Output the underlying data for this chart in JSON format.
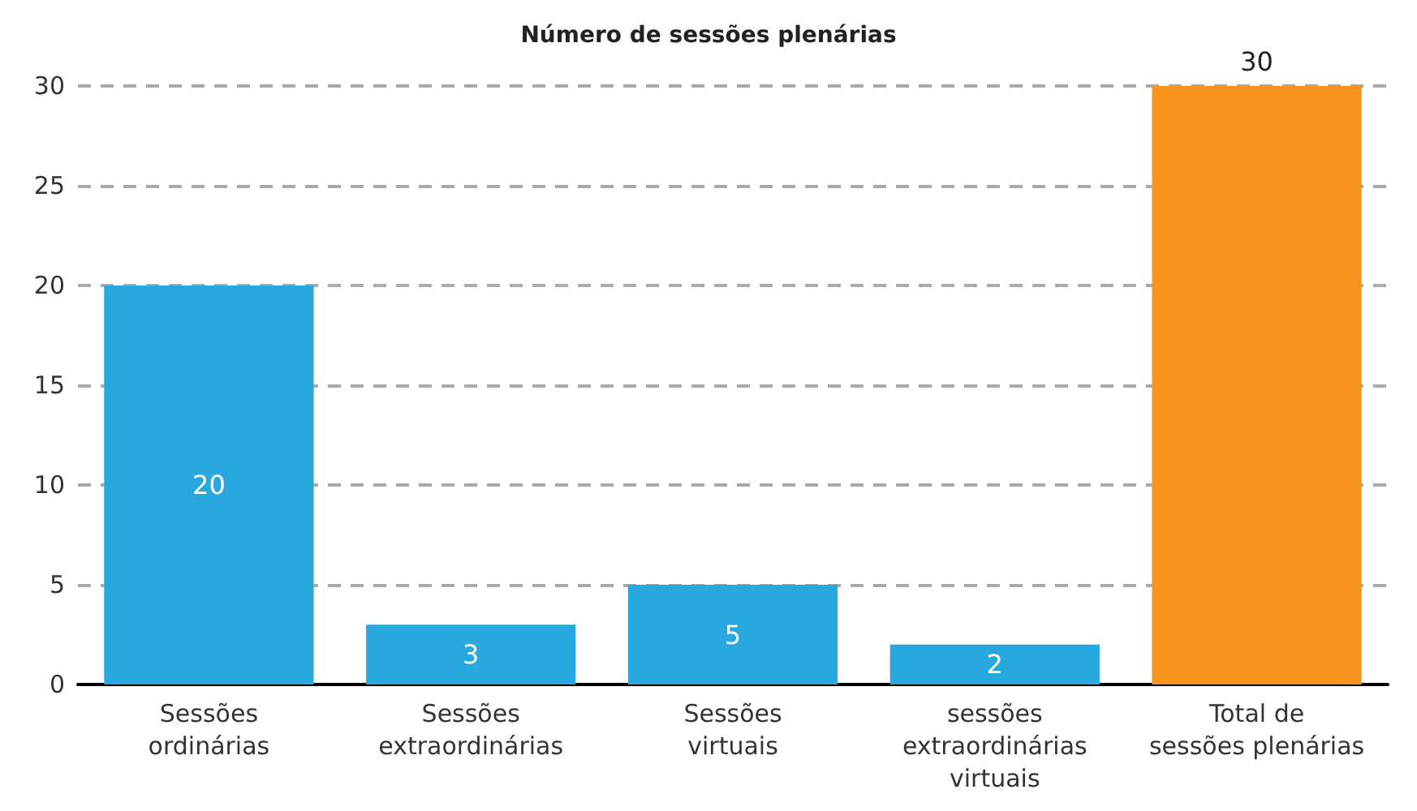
{
  "chart_data": {
    "type": "bar",
    "title": "Número de sessões plenárias",
    "categories": [
      "Sessões\nordinárias",
      "Sessões\nextraordinárias",
      "Sessões\nvirtuais",
      "sessões\nextraordinárias\nvirtuais",
      "Total de\nsessões plenárias"
    ],
    "values": [
      20,
      3,
      5,
      2,
      30
    ],
    "colors": [
      "#29a8e0",
      "#29a8e0",
      "#29a8e0",
      "#29a8e0",
      "#f7941d"
    ],
    "ylim": [
      0,
      30
    ],
    "yticks": [
      0,
      5,
      10,
      15,
      20,
      25,
      30
    ],
    "grid": "y",
    "data_labels": true
  }
}
